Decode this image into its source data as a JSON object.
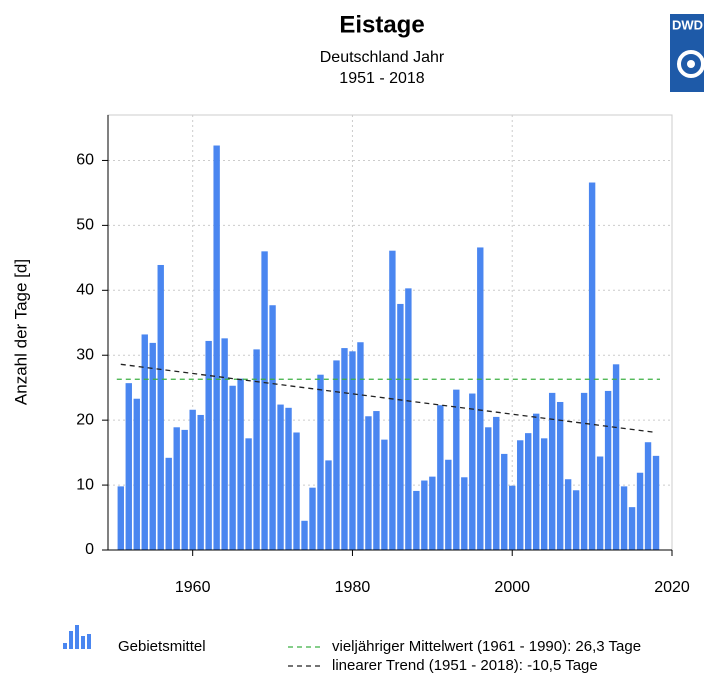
{
  "chart_data": {
    "type": "bar",
    "title": "Eistage",
    "subtitle": "Deutschland Jahr",
    "period": "1951 - 2018",
    "logo_text": "DWD",
    "ylabel": "Anzahl der Tage [d]",
    "x": [
      1951,
      1952,
      1953,
      1954,
      1955,
      1956,
      1957,
      1958,
      1959,
      1960,
      1961,
      1962,
      1963,
      1964,
      1965,
      1966,
      1967,
      1968,
      1969,
      1970,
      1971,
      1972,
      1973,
      1974,
      1975,
      1976,
      1977,
      1978,
      1979,
      1980,
      1981,
      1982,
      1983,
      1984,
      1985,
      1986,
      1987,
      1988,
      1989,
      1990,
      1991,
      1992,
      1993,
      1994,
      1995,
      1996,
      1997,
      1998,
      1999,
      2000,
      2001,
      2002,
      2003,
      2004,
      2005,
      2006,
      2007,
      2008,
      2009,
      2010,
      2011,
      2012,
      2013,
      2014,
      2015,
      2016,
      2017,
      2018
    ],
    "series": [
      {
        "name": "Gebietsmittel",
        "color": "#4a86f0",
        "values": [
          9.8,
          25.7,
          23.3,
          33.2,
          31.9,
          43.9,
          14.2,
          18.9,
          18.5,
          21.6,
          20.8,
          32.2,
          62.3,
          32.6,
          25.3,
          26.4,
          17.2,
          30.9,
          46.0,
          37.7,
          22.4,
          21.9,
          18.1,
          4.5,
          9.6,
          27.0,
          13.8,
          29.2,
          31.1,
          30.6,
          32.0,
          20.6,
          21.4,
          17.0,
          46.1,
          37.9,
          40.3,
          9.1,
          10.7,
          11.3,
          22.3,
          13.9,
          24.7,
          11.2,
          24.1,
          46.6,
          18.9,
          20.5,
          14.8,
          9.9,
          16.9,
          18.0,
          21.0,
          17.2,
          24.2,
          22.8,
          10.9,
          9.2,
          24.2,
          56.6,
          14.4,
          24.5,
          28.6,
          9.8,
          6.6,
          11.9,
          16.6,
          14.5
        ]
      }
    ],
    "mean": {
      "name": "vieljähriger Mittelwert (1961 - 1990): 26,3 Tage",
      "color": "#3cb043",
      "value": 26.3
    },
    "trend": {
      "name": "linearer Trend (1951 - 2018): -10,5 Tage",
      "color": "#222222",
      "x": [
        1951,
        2018
      ],
      "values": [
        28.6,
        18.1
      ]
    },
    "xlim": [
      1949.4,
      2020
    ],
    "ylim": [
      0,
      67
    ],
    "xticks": [
      1960,
      1980,
      2000,
      2020
    ],
    "yticks": [
      0,
      10,
      20,
      30,
      40,
      50,
      60
    ],
    "grid": true
  }
}
